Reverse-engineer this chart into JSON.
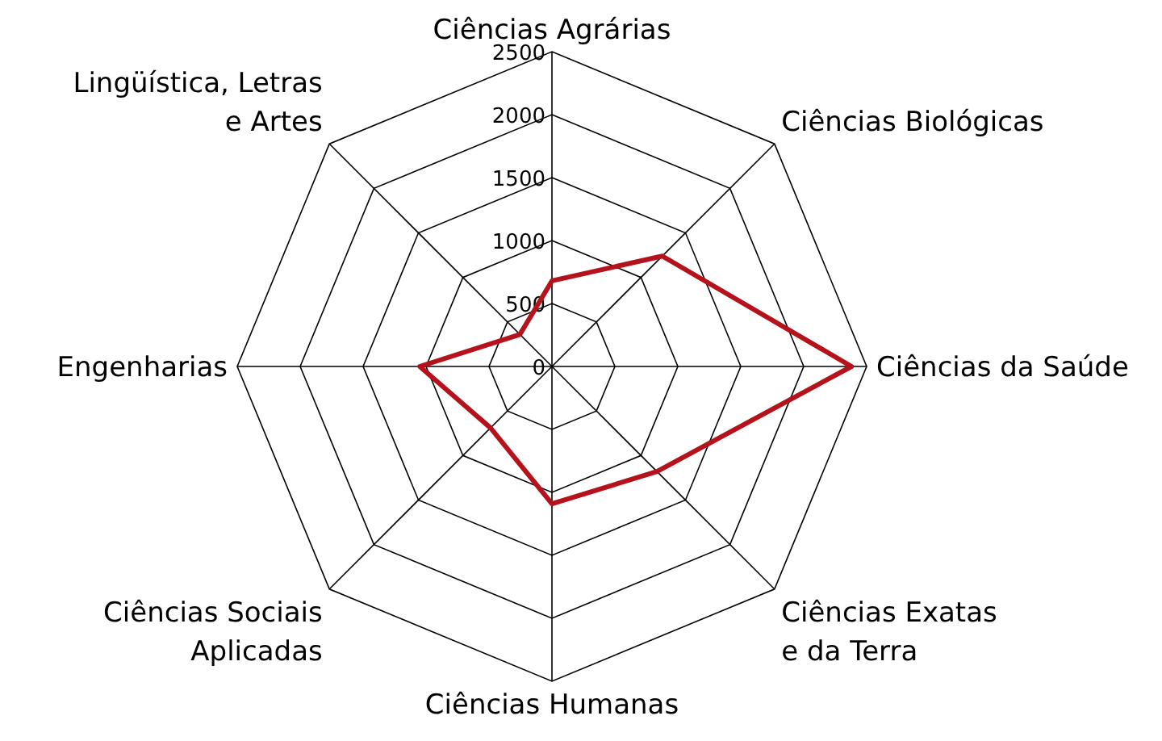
{
  "chart_data": {
    "type": "radar",
    "categories": [
      "Ciências Agrárias",
      "Ciências Biológicas",
      "Ciências da Saúde",
      "Ciências Exatas e da Terra",
      "Ciências Humanas",
      "Ciências Sociais Aplicadas",
      "Engenharias",
      "Lingüística, Letras e Artes"
    ],
    "series": [
      {
        "color": "#b5121b",
        "values": [
          680,
          1240,
          2380,
          1180,
          1090,
          690,
          1050,
          360
        ]
      }
    ],
    "ylim": [
      0,
      2500
    ],
    "yticks": [
      0,
      500,
      1000,
      1500,
      2000,
      2500
    ],
    "legend": false
  }
}
